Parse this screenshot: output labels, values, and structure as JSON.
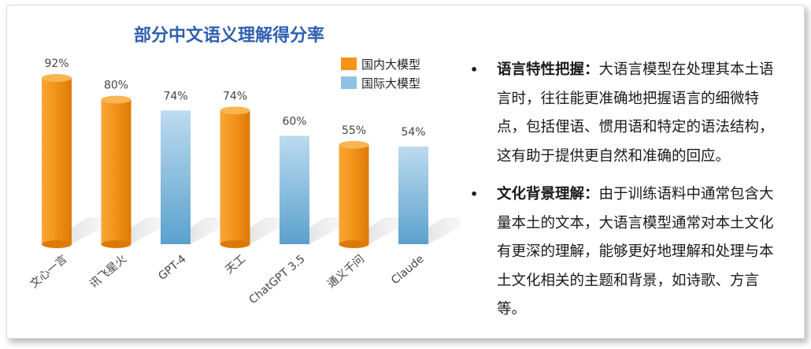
{
  "chart_data": {
    "type": "bar",
    "title": "部分中文语义理解得分率",
    "categories": [
      "文心一言",
      "讯飞星火",
      "GPT-4",
      "天工",
      "ChatGPT 3.5",
      "通义千问",
      "Claude"
    ],
    "values": [
      92,
      80,
      74,
      74,
      60,
      55,
      54
    ],
    "value_labels": [
      "92%",
      "80%",
      "74%",
      "74%",
      "60%",
      "55%",
      "54%"
    ],
    "groups": [
      "domestic",
      "domestic",
      "international",
      "domestic",
      "international",
      "domestic",
      "international"
    ],
    "legend": [
      {
        "key": "domestic",
        "name": "国内大模型",
        "color": "#f39419"
      },
      {
        "key": "international",
        "name": "国际大模型",
        "color": "#8fc3e3"
      }
    ],
    "legend_position": "top-right",
    "ylim": [
      0,
      100
    ],
    "grid": false,
    "xlabel": "",
    "ylabel": ""
  },
  "bullets": [
    {
      "marker": "•",
      "lead": "语言特性把握：",
      "text": "大语言模型在处理其本土语言时，往往能更准确地把握语言的细微特点，包括俚语、惯用语和特定的语法结构，这有助于提供更自然和准确的回应。"
    },
    {
      "marker": "•",
      "lead": "文化背景理解：",
      "text": "由于训练语料中通常包含大量本土的文本，大语言模型通常对本土文化有更深的理解，能够更好地理解和处理与本土文化相关的主题和背景，如诗歌、方言等。"
    }
  ]
}
